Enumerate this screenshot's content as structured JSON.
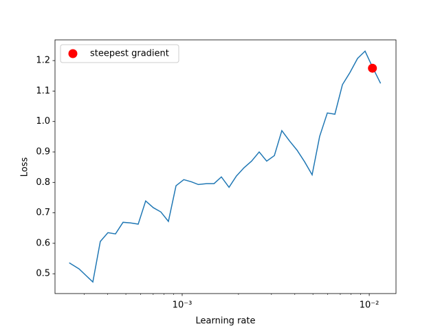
{
  "chart_data": {
    "type": "line",
    "xlabel": "Learning rate",
    "ylabel": "Loss",
    "xscale": "log",
    "xlim": [
      0.000209,
      0.0139
    ],
    "ylim": [
      0.435,
      1.268
    ],
    "xticks": [
      {
        "value": 0.001,
        "label": "10⁻³"
      },
      {
        "value": 0.01,
        "label": "10⁻²"
      }
    ],
    "xminorticks": [
      0.0003,
      0.0004,
      0.0005,
      0.0006,
      0.0007,
      0.0008,
      0.0009,
      0.002,
      0.003,
      0.004,
      0.005,
      0.006,
      0.007,
      0.008,
      0.009
    ],
    "yticks": [
      0.5,
      0.6,
      0.7,
      0.8,
      0.9,
      {
        "value": 1,
        "label": "1.0"
      },
      1.1,
      1.2
    ],
    "legend": "upper left",
    "series": [
      {
        "type": "line",
        "color": "#1f77b4",
        "x": [
          0.000249,
          0.000281,
          0.000333,
          0.000365,
          0.000401,
          0.00044,
          0.000483,
          0.00053,
          0.000582,
          0.000638,
          0.000701,
          0.000769,
          0.000844,
          0.000927,
          0.00102,
          0.00112,
          0.00122,
          0.00135,
          0.00148,
          0.00162,
          0.00178,
          0.00195,
          0.00214,
          0.00235,
          0.00258,
          0.00283,
          0.00311,
          0.00341,
          0.00375,
          0.00411,
          0.00451,
          0.00495,
          0.00543,
          0.00597,
          0.00655,
          0.00719,
          0.00789,
          0.00866,
          0.0095,
          0.0104,
          0.0115
        ],
        "values": [
          0.536,
          0.516,
          0.473,
          0.606,
          0.635,
          0.631,
          0.669,
          0.667,
          0.663,
          0.739,
          0.717,
          0.703,
          0.672,
          0.789,
          0.809,
          0.802,
          0.793,
          0.796,
          0.796,
          0.818,
          0.784,
          0.821,
          0.848,
          0.87,
          0.9,
          0.87,
          0.888,
          0.97,
          0.936,
          0.906,
          0.868,
          0.825,
          0.951,
          1.028,
          1.024,
          1.121,
          1.161,
          1.207,
          1.231,
          1.179,
          1.125
        ]
      },
      {
        "type": "scatter",
        "name": "steepest gradient",
        "color": "red",
        "x": [
          0.0104
        ],
        "values": [
          1.175
        ]
      }
    ]
  }
}
